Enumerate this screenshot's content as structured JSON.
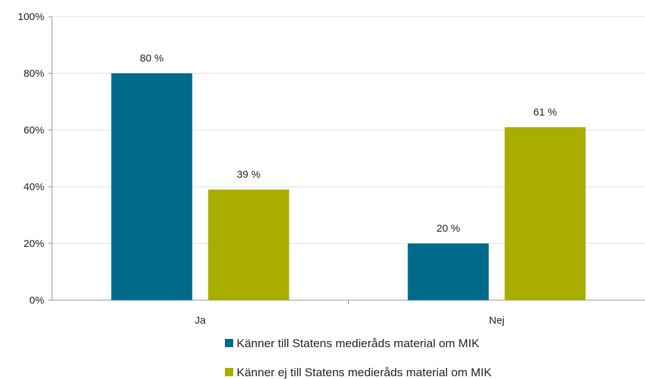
{
  "chart_data": {
    "type": "bar",
    "categories": [
      "Ja",
      "Nej"
    ],
    "series": [
      {
        "name": "Känner till Statens medieråds material om MIK",
        "values": [
          80,
          20
        ],
        "labels": [
          "80 %",
          "20 %"
        ],
        "color": "#006a8a"
      },
      {
        "name": "Känner ej till Statens medieråds material om MIK",
        "values": [
          39,
          61
        ],
        "labels": [
          "39 %",
          "61 %"
        ],
        "color": "#a8ad00"
      }
    ],
    "ylim": [
      0,
      100
    ],
    "yticks": [
      0,
      20,
      40,
      60,
      80,
      100
    ],
    "ytick_labels": [
      "0%",
      "20%",
      "40%",
      "60%",
      "80%",
      "100%"
    ],
    "grid": true,
    "legend_position": "bottom",
    "title": "",
    "xlabel": "",
    "ylabel": ""
  }
}
